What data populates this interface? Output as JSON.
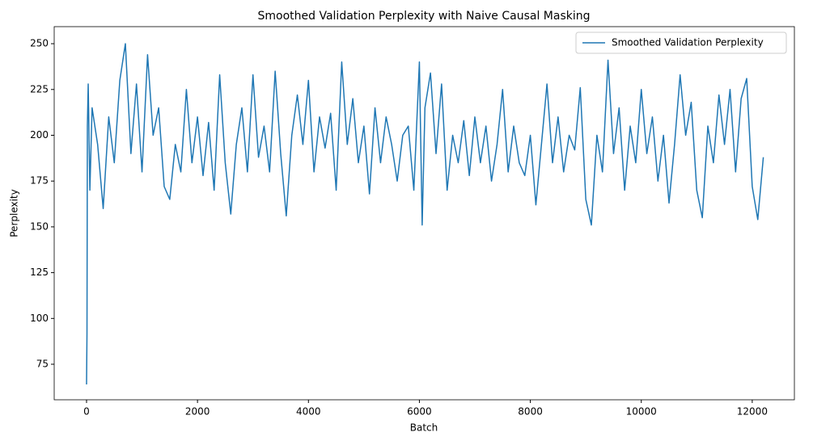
{
  "chart_data": {
    "type": "line",
    "title": "Smoothed Validation Perplexity with Naive Causal Masking",
    "x_label": "Batch",
    "y_label": "Perplexity",
    "x": [
      0,
      8,
      15,
      30,
      60,
      100,
      200,
      300,
      400,
      500,
      600,
      700,
      800,
      900,
      1000,
      1100,
      1200,
      1300,
      1400,
      1500,
      1600,
      1700,
      1800,
      1900,
      2000,
      2100,
      2200,
      2300,
      2400,
      2500,
      2600,
      2700,
      2800,
      2900,
      3000,
      3100,
      3200,
      3300,
      3400,
      3500,
      3600,
      3700,
      3800,
      3900,
      4000,
      4100,
      4200,
      4300,
      4400,
      4500,
      4600,
      4700,
      4800,
      4900,
      5000,
      5100,
      5200,
      5300,
      5400,
      5500,
      5600,
      5700,
      5800,
      5900,
      6000,
      6050,
      6100,
      6200,
      6300,
      6400,
      6500,
      6600,
      6700,
      6800,
      6900,
      7000,
      7100,
      7200,
      7300,
      7400,
      7500,
      7600,
      7700,
      7800,
      7900,
      8000,
      8100,
      8200,
      8300,
      8400,
      8500,
      8600,
      8700,
      8800,
      8900,
      9000,
      9100,
      9200,
      9300,
      9400,
      9500,
      9600,
      9700,
      9800,
      9900,
      10000,
      10100,
      10200,
      10300,
      10400,
      10500,
      10600,
      10700,
      10800,
      10900,
      11000,
      11100,
      11200,
      11300,
      11400,
      11500,
      11600,
      11700,
      11800,
      11900,
      12000,
      12100,
      12200
    ],
    "series": [
      {
        "name": "Smoothed Validation Perplexity",
        "color": "#1f77b4",
        "values": [
          64,
          92,
          205,
          228,
          170,
          215,
          195,
          160,
          210,
          185,
          230,
          250,
          190,
          228,
          180,
          244,
          200,
          215,
          172,
          165,
          195,
          180,
          225,
          185,
          210,
          178,
          207,
          170,
          233,
          185,
          157,
          195,
          215,
          180,
          233,
          188,
          205,
          180,
          235,
          190,
          156,
          200,
          222,
          195,
          230,
          180,
          210,
          193,
          212,
          170,
          240,
          195,
          220,
          185,
          205,
          168,
          215,
          185,
          210,
          195,
          175,
          200,
          205,
          170,
          240,
          151,
          215,
          234,
          190,
          228,
          170,
          200,
          185,
          208,
          178,
          210,
          185,
          205,
          175,
          195,
          225,
          180,
          205,
          185,
          178,
          200,
          162,
          195,
          228,
          185,
          210,
          180,
          200,
          192,
          226,
          165,
          151,
          200,
          180,
          241,
          190,
          215,
          170,
          205,
          185,
          225,
          190,
          210,
          175,
          200,
          163,
          195,
          233,
          200,
          218,
          170,
          155,
          205,
          185,
          222,
          195,
          225,
          180,
          220,
          231,
          172,
          154,
          188
        ]
      }
    ],
    "xlim": [
      -583,
      12760
    ],
    "ylim": [
      55.6,
      259.3
    ],
    "xticks": [
      0,
      2000,
      4000,
      6000,
      8000,
      10000,
      12000
    ],
    "yticks": [
      75,
      100,
      125,
      150,
      175,
      200,
      225,
      250
    ],
    "legend": "upper right"
  }
}
